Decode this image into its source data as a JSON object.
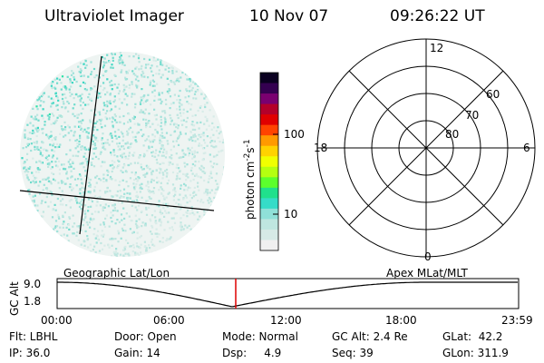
{
  "header": {
    "instrument": "Ultraviolet Imager",
    "date": "10 Nov 07",
    "time": "09:26:22 UT"
  },
  "image_panel": {
    "grid_lines": "geographic",
    "colormap_colors": [
      "#ffffff",
      "#d8ece8",
      "#a8e0d8",
      "#5ad8c8",
      "#30e0a0",
      "#4aff40",
      "#a8ff20",
      "#eaff00",
      "#ffd000",
      "#ff9000",
      "#ff3000",
      "#cc0000",
      "#aa0040",
      "#60006a",
      "#200040"
    ]
  },
  "colorbar": {
    "label": "photon cm^-2s^-1",
    "label_main": "photon cm",
    "label_sup1": "-2",
    "label_mid": "s",
    "label_sup2": "-1",
    "ticks": [
      {
        "value": 100,
        "label": "100"
      },
      {
        "value": 10,
        "label": "10"
      }
    ],
    "colors": [
      "#f0f0f0",
      "#d6eae6",
      "#bfe6e0",
      "#8fe0d8",
      "#36dcc8",
      "#20e08c",
      "#5cff2c",
      "#b4ff10",
      "#f0ff00",
      "#ffd200",
      "#ff9a00",
      "#ff4400",
      "#e00000",
      "#b4002a",
      "#7a0070",
      "#340050",
      "#0a0020"
    ]
  },
  "polar_plot": {
    "mlt_labels": {
      "top": "12",
      "left": "18",
      "right": "6",
      "bottom": "0"
    },
    "lat_labels": [
      "60",
      "70",
      "80"
    ]
  },
  "timeline": {
    "left_label": "Geographic Lat/Lon",
    "right_label": "Apex  MLat/MLT",
    "y_axis_title": "GC Alt",
    "y_ticks": [
      "9.0",
      "1.8"
    ],
    "x_ticks": [
      "00:00",
      "06:00",
      "12:00",
      "18:00",
      "23:59"
    ],
    "current_time_color": "#dd0000"
  },
  "status": {
    "flt": "Flt: LBHL",
    "door": "Door: Open",
    "mode": "Mode: Normal",
    "gc_alt": "GC Alt: 2.4 Re",
    "glat": "GLat:  42.2",
    "ip": "IP: 36.0",
    "gain": "Gain: 14",
    "dsp": "Dsp:     4.9",
    "seq": "Seq: 39",
    "glon": "GLon: 311.9"
  }
}
